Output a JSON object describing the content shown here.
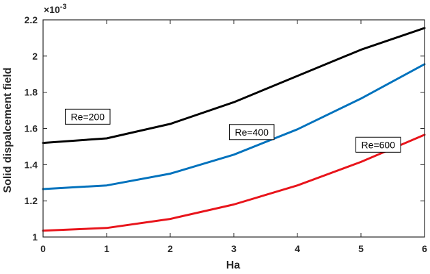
{
  "chart_data": {
    "type": "line",
    "xlabel": "Ha",
    "ylabel": "Solid dispalcement field",
    "exponent_label": "×10",
    "exponent_power": "-3",
    "xlim": [
      0,
      6
    ],
    "ylim": [
      1.0,
      2.2
    ],
    "x_ticks": [
      "0",
      "1",
      "2",
      "3",
      "4",
      "5",
      "6"
    ],
    "y_ticks": [
      "1",
      "1.2",
      "1.4",
      "1.6",
      "1.8",
      "2",
      "2.2"
    ],
    "x": [
      0,
      1,
      2,
      3,
      4,
      5,
      6
    ],
    "series": [
      {
        "name": "Re=200",
        "color": "#000000",
        "values": [
          1.52,
          1.545,
          1.625,
          1.745,
          1.89,
          2.035,
          2.155
        ]
      },
      {
        "name": "Re=400",
        "color": "#0072BD",
        "values": [
          1.265,
          1.285,
          1.35,
          1.455,
          1.595,
          1.765,
          1.955
        ]
      },
      {
        "name": "Re=600",
        "color": "#E8141B",
        "values": [
          1.035,
          1.05,
          1.1,
          1.18,
          1.285,
          1.415,
          1.565
        ]
      }
    ],
    "annotations": [
      {
        "text": "Re=200",
        "x": 0.35,
        "y": 1.665
      },
      {
        "text": "Re=400",
        "x": 2.93,
        "y": 1.58
      },
      {
        "text": "Re=600",
        "x": 4.92,
        "y": 1.51
      }
    ],
    "grid": false,
    "legend": "none"
  }
}
